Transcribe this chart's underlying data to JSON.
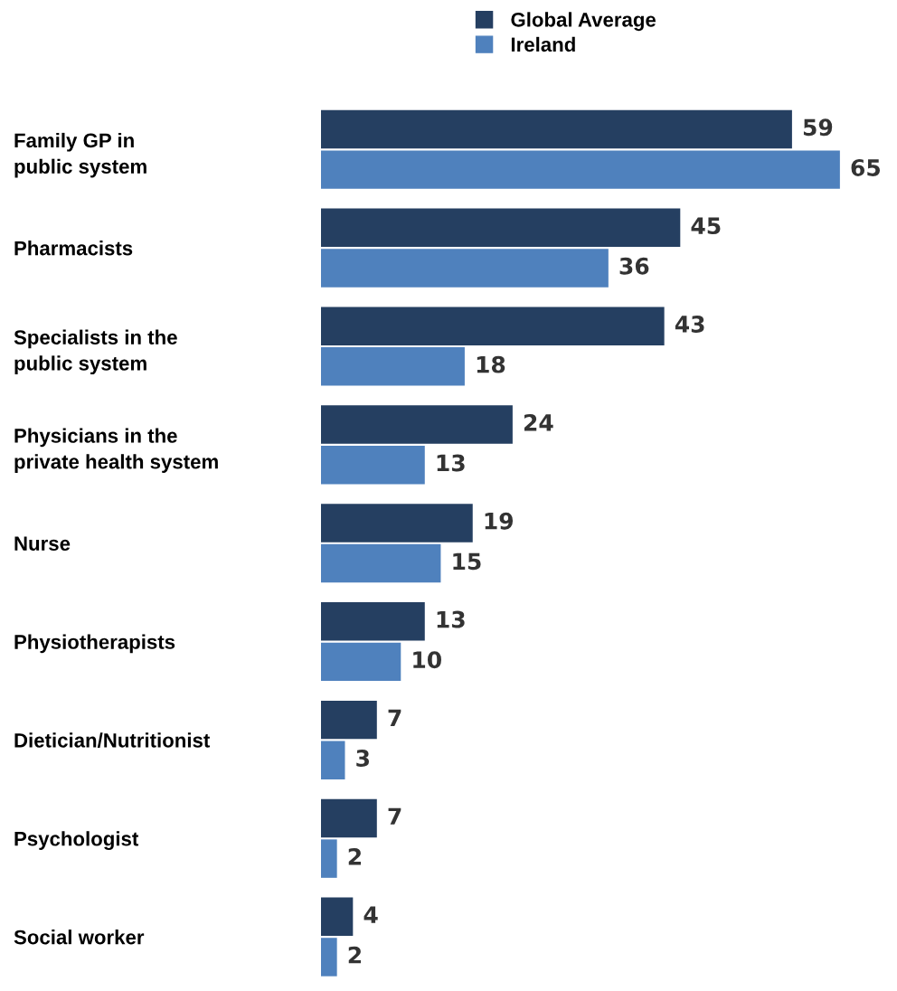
{
  "chart_data": {
    "type": "bar",
    "orientation": "horizontal",
    "categories": [
      "Family GP in\npublic system",
      "Pharmacists",
      "Specialists in the\npublic system",
      "Physicians in the\nprivate health system",
      "Nurse",
      "Physiotherapists",
      "Dietician/Nutritionist",
      "Psychologist",
      "Social worker"
    ],
    "series": [
      {
        "name": "Global Average",
        "color": "#253f61",
        "values": [
          59,
          45,
          43,
          24,
          19,
          13,
          7,
          7,
          4
        ]
      },
      {
        "name": "Ireland",
        "color": "#4f81bd",
        "values": [
          65,
          36,
          18,
          13,
          15,
          10,
          3,
          2,
          2
        ]
      }
    ],
    "data_labels": true,
    "legend": "top",
    "grid": false,
    "tick_labels": "y"
  }
}
